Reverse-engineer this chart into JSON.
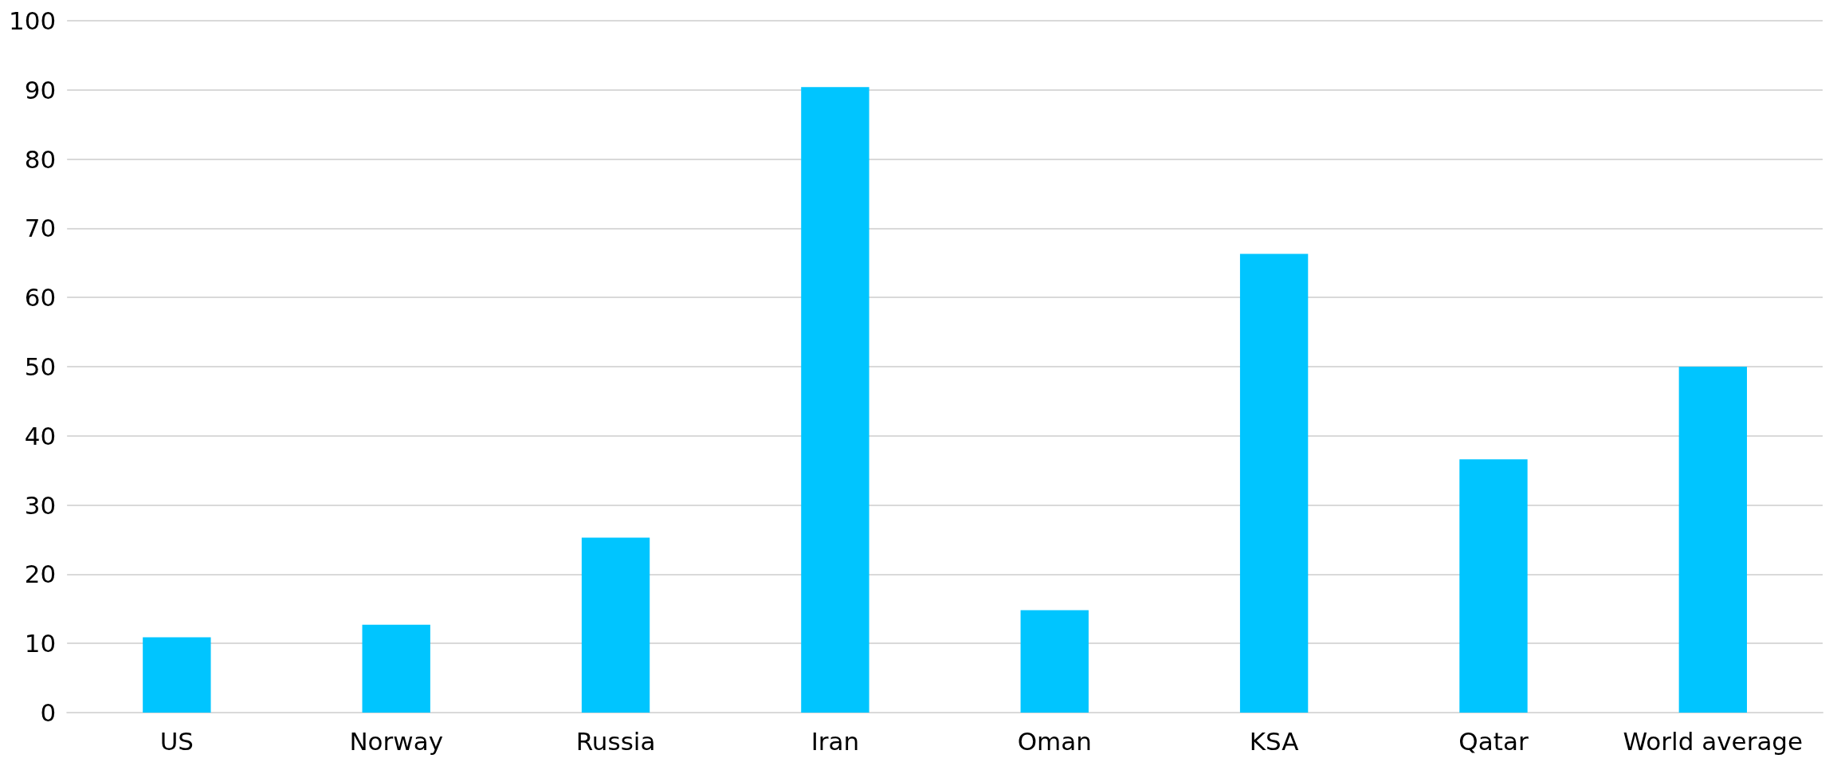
{
  "chart_data": {
    "type": "bar",
    "categories": [
      "US",
      "Norway",
      "Russia",
      "Iran",
      "Oman",
      "KSA",
      "Qatar",
      "World average"
    ],
    "values": [
      10.9,
      12.7,
      25.3,
      90.4,
      14.8,
      66.3,
      36.6,
      50
    ],
    "color": "#00c5ff",
    "ylim": [
      0,
      100
    ],
    "yticks": [
      0,
      10,
      20,
      30,
      40,
      50,
      60,
      70,
      80,
      90,
      100
    ],
    "grid": "y"
  }
}
